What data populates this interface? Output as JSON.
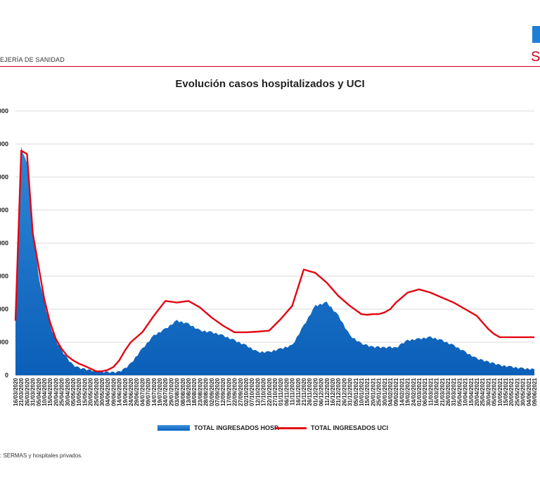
{
  "header": {
    "org_label": "EJERÍA DE SANIDAD",
    "logo_letter": "S"
  },
  "chart_data": {
    "type": "area",
    "title": "Evolución casos hospitalizados y UCI",
    "xlabel": "",
    "ylabel": "",
    "y_tick_labels": [
      "0",
      "000",
      "000",
      "000",
      "000",
      "000",
      "000",
      "000",
      "000"
    ],
    "grid": true,
    "legend_position": "bottom",
    "x_tick_labels": [
      "16/03/2020",
      "21/03/2020",
      "26/03/2020",
      "31/03/2020",
      "05/04/2020",
      "10/04/2020",
      "15/04/2020",
      "20/04/2020",
      "25/04/2020",
      "30/04/2020",
      "05/05/2020",
      "10/05/2020",
      "15/05/2020",
      "20/05/2020",
      "25/05/2020",
      "30/05/2020",
      "04/06/2020",
      "09/06/2020",
      "14/06/2020",
      "19/06/2020",
      "24/06/2020",
      "29/06/2020",
      "04/07/2020",
      "09/07/2020",
      "14/07/2020",
      "19/07/2020",
      "24/07/2020",
      "29/07/2020",
      "03/08/2020",
      "08/08/2020",
      "13/08/2020",
      "18/08/2020",
      "23/08/2020",
      "28/08/2020",
      "02/09/2020",
      "07/09/2020",
      "12/09/2020",
      "17/09/2020",
      "22/09/2020",
      "27/09/2020",
      "02/10/2020",
      "07/10/2020",
      "12/10/2020",
      "17/10/2020",
      "22/10/2020",
      "27/10/2020",
      "01/11/2020",
      "06/11/2020",
      "11/11/2020",
      "16/11/2020",
      "21/11/2020",
      "26/11/2020",
      "01/12/2020",
      "06/12/2020",
      "11/12/2020",
      "16/12/2020",
      "21/12/2020",
      "26/12/2020",
      "31/12/2020",
      "05/01/2021",
      "10/01/2021",
      "15/01/2021",
      "20/01/2021",
      "25/01/2021",
      "30/01/2021",
      "04/02/2021",
      "09/02/2021",
      "14/02/2021",
      "19/02/2021",
      "24/02/2021",
      "01/03/2021",
      "06/03/2021",
      "11/03/2021",
      "16/03/2021",
      "21/03/2021",
      "26/03/2021",
      "31/03/2021",
      "05/04/2021",
      "10/04/2021",
      "15/04/2021",
      "20/04/2021",
      "25/04/2021",
      "30/04/2021",
      "05/05/2021",
      "10/05/2021",
      "15/05/2021",
      "20/05/2021",
      "25/05/2021",
      "30/05/2021",
      "04/06/2021",
      "09/06/2021"
    ],
    "series": [
      {
        "name": "TOTAL INGRESADOS HOSP.",
        "color": "#0b66c3",
        "x_index": [
          0,
          1,
          2,
          3,
          4,
          5,
          6,
          7,
          8,
          9,
          10,
          11,
          12,
          13,
          14,
          15,
          16,
          17,
          18,
          19,
          20,
          22,
          24,
          26,
          28,
          30,
          32,
          34,
          36,
          38,
          40,
          42,
          44,
          46,
          48,
          50,
          52,
          54,
          56,
          58,
          60,
          61,
          62,
          63,
          64,
          65,
          66,
          67,
          68,
          70,
          72,
          74,
          76,
          78,
          80,
          81,
          82,
          83,
          84,
          86,
          88,
          90
        ],
        "values": [
          1.8,
          6.9,
          6.4,
          4.5,
          3.0,
          2.2,
          1.5,
          1.05,
          0.75,
          0.5,
          0.3,
          0.22,
          0.18,
          0.14,
          0.12,
          0.1,
          0.09,
          0.08,
          0.1,
          0.2,
          0.35,
          0.8,
          1.2,
          1.4,
          1.65,
          1.55,
          1.35,
          1.3,
          1.2,
          1.05,
          0.9,
          0.7,
          0.7,
          0.8,
          0.9,
          1.5,
          2.1,
          2.2,
          1.8,
          1.2,
          0.95,
          0.9,
          0.85,
          0.85,
          0.83,
          0.85,
          0.82,
          0.95,
          1.05,
          1.1,
          1.15,
          1.05,
          0.9,
          0.7,
          0.5,
          0.45,
          0.4,
          0.35,
          0.3,
          0.25,
          0.2,
          0.18
        ]
      },
      {
        "name": "TOTAL INGRESADOS UCI",
        "color": "#e30613",
        "x_index": [
          0,
          1,
          2,
          3,
          4,
          5,
          6,
          7,
          8,
          9,
          10,
          11,
          12,
          13,
          14,
          15,
          16,
          17,
          18,
          19,
          20,
          22,
          24,
          26,
          28,
          30,
          32,
          34,
          36,
          38,
          40,
          42,
          44,
          46,
          48,
          50,
          52,
          54,
          56,
          58,
          60,
          61,
          62,
          63,
          64,
          65,
          66,
          67,
          68,
          70,
          72,
          74,
          76,
          78,
          80,
          81,
          82,
          83,
          84,
          86,
          88,
          90
        ],
        "values": [
          1.65,
          6.8,
          6.7,
          4.3,
          3.3,
          2.3,
          1.6,
          1.1,
          0.8,
          0.58,
          0.45,
          0.35,
          0.28,
          0.2,
          0.12,
          0.12,
          0.16,
          0.25,
          0.45,
          0.75,
          1.0,
          1.3,
          1.8,
          2.25,
          2.2,
          2.25,
          2.05,
          1.75,
          1.5,
          1.3,
          1.3,
          1.32,
          1.35,
          1.7,
          2.1,
          3.2,
          3.1,
          2.8,
          2.4,
          2.1,
          1.85,
          1.83,
          1.85,
          1.85,
          1.9,
          2.0,
          2.2,
          2.35,
          2.5,
          2.6,
          2.5,
          2.35,
          2.2,
          2.0,
          1.8,
          1.6,
          1.4,
          1.25,
          1.15,
          1.15,
          1.15,
          1.15
        ]
      }
    ]
  },
  "footer": {
    "source": ": SERMAS y hospitales privados."
  }
}
